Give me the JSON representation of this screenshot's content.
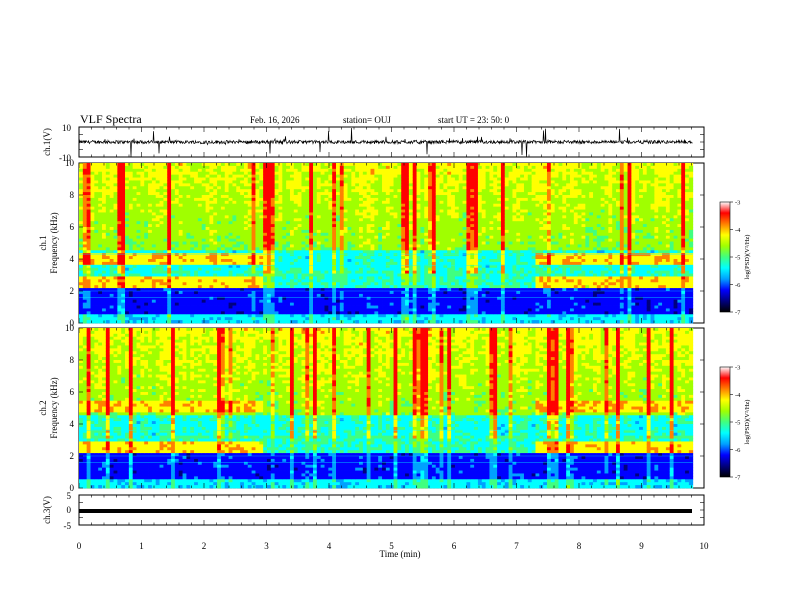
{
  "chart_data": {
    "type": "heatmap",
    "header": {
      "title": "VLF Spectra",
      "date": "Feb. 16, 2026",
      "station": "station= OUJ",
      "start": "start  UT  =   23: 50: 0"
    },
    "xlabel": "Time  (min)",
    "x_ticks": [
      "0",
      "1",
      "2",
      "3",
      "4",
      "5",
      "6",
      "7",
      "8",
      "9",
      "10"
    ],
    "xlim": [
      0,
      10
    ],
    "panels": [
      {
        "name": "ch1-waveform",
        "ylabel": "ch.1(V)",
        "ylim": [
          -10,
          10
        ],
        "y_ticks": [
          "10",
          "-10"
        ],
        "data_end_min": 9.82
      },
      {
        "name": "ch1-spectrogram",
        "ylabel_line1": "ch.1",
        "ylabel_line2": "Frequency (kHz)",
        "ylim": [
          0,
          10
        ],
        "y_ticks": [
          "0",
          "2",
          "4",
          "6",
          "8",
          "10"
        ],
        "cb_ticks": [
          "-3",
          "-4",
          "-5",
          "-6",
          "-7"
        ],
        "cb_label": "log(PSD)(V²/Hz)",
        "clim": [
          -7,
          -3
        ],
        "bands_khz": [
          2.6,
          4.0
        ],
        "band_gap_min": [
          2.92,
          7.3
        ]
      },
      {
        "name": "ch2-spectrogram",
        "ylabel_line1": "ch.2",
        "ylabel_line2": "Frequency (kHz)",
        "ylim": [
          0,
          10
        ],
        "y_ticks": [
          "0",
          "2",
          "4",
          "6",
          "8",
          "10"
        ],
        "cb_ticks": [
          "-3",
          "-4",
          "-5",
          "-6",
          "-7"
        ],
        "cb_label": "log(PSD)(V²/Hz)",
        "clim": [
          -7,
          -3
        ],
        "bands_khz": [
          2.6,
          5.1
        ],
        "band_gap_min": [
          2.92,
          7.3
        ]
      },
      {
        "name": "ch3-waveform",
        "ylabel": "ch.3(V)",
        "ylim": [
          -5,
          5
        ],
        "y_ticks": [
          "5",
          "0",
          "-5"
        ],
        "constant_value": 0
      }
    ],
    "colormap": [
      "#00007f",
      "#0000ff",
      "#00a0ff",
      "#00ffff",
      "#40ff80",
      "#a0ff00",
      "#ffff00",
      "#ff8000",
      "#ff0000",
      "#ffffff"
    ]
  }
}
